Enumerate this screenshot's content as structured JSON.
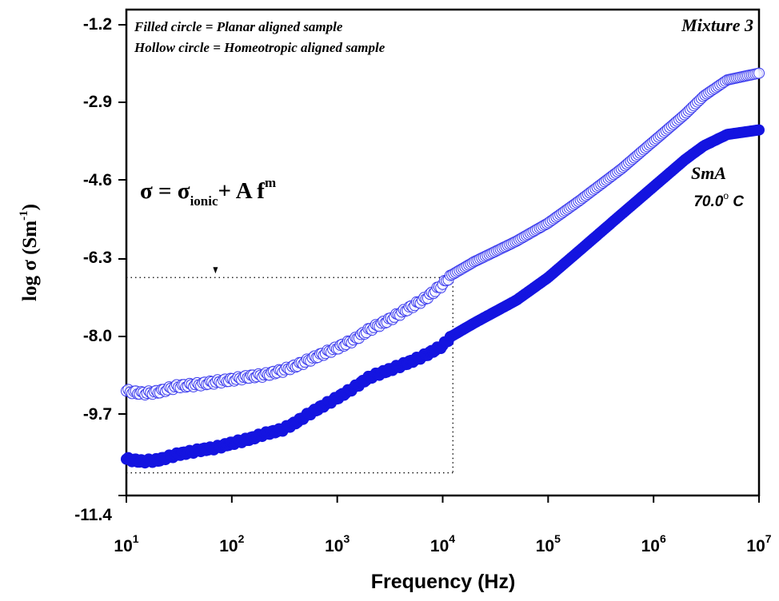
{
  "chart_data": {
    "type": "scatter",
    "title": "",
    "xlabel": "Frequency (Hz)",
    "ylabel_main": "log σ (Sm",
    "ylabel_sup": "-1",
    "ylabel_close": ")",
    "x_scale": "log",
    "xlim": [
      10,
      10000000
    ],
    "ylim": [
      -11.4,
      -0.7
    ],
    "x_ticks": [
      {
        "value": 10,
        "base": "10",
        "exp": "1"
      },
      {
        "value": 100,
        "base": "10",
        "exp": "2"
      },
      {
        "value": 1000,
        "base": "10",
        "exp": "3"
      },
      {
        "value": 10000,
        "base": "10",
        "exp": "4"
      },
      {
        "value": 100000,
        "base": "10",
        "exp": "5"
      },
      {
        "value": 1000000,
        "base": "10",
        "exp": "6"
      },
      {
        "value": 10000000,
        "base": "10",
        "exp": "7"
      }
    ],
    "y_ticks": [
      "-1.2",
      "-2.9",
      "-4.6",
      "-6.3",
      "-8.0",
      "-9.7",
      "-11.4"
    ],
    "legend_lines": [
      "Filled circle = Planar aligned sample",
      "Hollow circle = Homeotropic aligned sample"
    ],
    "panel_label": "Mixture 3",
    "phase_label": "SmA",
    "temperature": {
      "value": "70.0",
      "degree": "o",
      "unit": " C"
    },
    "equation": {
      "lhs": "σ = σ",
      "sub": "ionic",
      "rhs": "+ A f",
      "sup": "m"
    },
    "zoom_box": {
      "x": [
        10,
        12500
      ],
      "y": [
        -10.9,
        -6.6
      ]
    },
    "arrow_marker_x": 70,
    "series": [
      {
        "marker": "hollow circle",
        "color": "#3a3aee",
        "points": [
          [
            10,
            -9.1
          ],
          [
            14,
            -9.15
          ],
          [
            20,
            -9.12
          ],
          [
            30,
            -9.0
          ],
          [
            50,
            -8.95
          ],
          [
            70,
            -8.9
          ],
          [
            100,
            -8.85
          ],
          [
            150,
            -8.78
          ],
          [
            200,
            -8.75
          ],
          [
            300,
            -8.65
          ],
          [
            400,
            -8.55
          ],
          [
            500,
            -8.45
          ],
          [
            700,
            -8.3
          ],
          [
            1000,
            -8.15
          ],
          [
            1500,
            -7.95
          ],
          [
            2000,
            -7.75
          ],
          [
            3000,
            -7.55
          ],
          [
            5000,
            -7.25
          ],
          [
            7000,
            -7.05
          ],
          [
            10000,
            -6.75
          ],
          [
            12000,
            -6.55
          ],
          [
            20000,
            -6.25
          ],
          [
            50000,
            -5.8
          ],
          [
            100000,
            -5.4
          ],
          [
            200000,
            -4.9
          ],
          [
            500000,
            -4.2
          ],
          [
            1000000,
            -3.6
          ],
          [
            2000000,
            -3.0
          ],
          [
            3000000,
            -2.6
          ],
          [
            5000000,
            -2.25
          ],
          [
            10000000,
            -2.1
          ]
        ]
      },
      {
        "marker": "filled circle",
        "color": "#1414e0",
        "points": [
          [
            10,
            -10.6
          ],
          [
            14,
            -10.65
          ],
          [
            20,
            -10.62
          ],
          [
            30,
            -10.5
          ],
          [
            50,
            -10.4
          ],
          [
            70,
            -10.35
          ],
          [
            100,
            -10.25
          ],
          [
            150,
            -10.15
          ],
          [
            200,
            -10.05
          ],
          [
            300,
            -9.95
          ],
          [
            400,
            -9.8
          ],
          [
            500,
            -9.65
          ],
          [
            700,
            -9.45
          ],
          [
            1000,
            -9.25
          ],
          [
            1500,
            -9.0
          ],
          [
            2000,
            -8.8
          ],
          [
            3000,
            -8.65
          ],
          [
            5000,
            -8.45
          ],
          [
            7000,
            -8.3
          ],
          [
            10000,
            -8.1
          ],
          [
            12000,
            -7.9
          ],
          [
            20000,
            -7.6
          ],
          [
            50000,
            -7.1
          ],
          [
            100000,
            -6.6
          ],
          [
            200000,
            -6.0
          ],
          [
            500000,
            -5.2
          ],
          [
            1000000,
            -4.6
          ],
          [
            2000000,
            -4.0
          ],
          [
            3000000,
            -3.7
          ],
          [
            5000000,
            -3.45
          ],
          [
            10000000,
            -3.35
          ]
        ]
      }
    ]
  }
}
